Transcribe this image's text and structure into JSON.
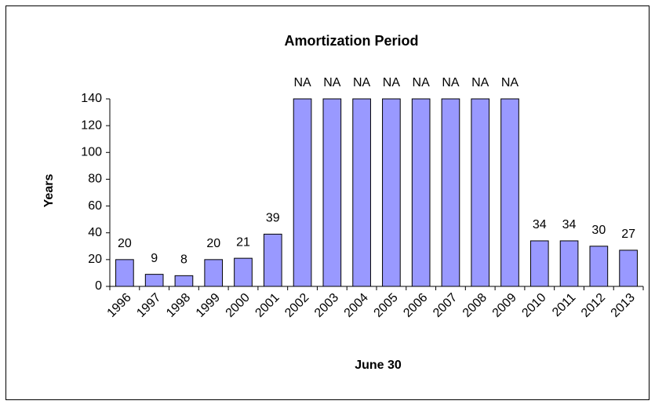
{
  "chart_data": {
    "type": "bar",
    "title": "Amortization Period",
    "x_label": "June 30",
    "y_label": "Years",
    "categories": [
      "1996",
      "1997",
      "1998",
      "1999",
      "2000",
      "2001",
      "2002",
      "2003",
      "2004",
      "2005",
      "2006",
      "2007",
      "2008",
      "2009",
      "2010",
      "2011",
      "2012",
      "2013"
    ],
    "values": [
      20,
      9,
      8,
      20,
      21,
      39,
      140,
      140,
      140,
      140,
      140,
      140,
      140,
      140,
      34,
      34,
      30,
      27
    ],
    "value_labels": [
      "20",
      "9",
      "8",
      "20",
      "21",
      "39",
      "NA",
      "NA",
      "NA",
      "NA",
      "NA",
      "NA",
      "NA",
      "NA",
      "34",
      "34",
      "30",
      "27"
    ],
    "color": "#9999ff",
    "ylim": [
      0,
      140
    ],
    "yticks": [
      0,
      20,
      40,
      60,
      80,
      100,
      120,
      140
    ],
    "grid": false
  }
}
